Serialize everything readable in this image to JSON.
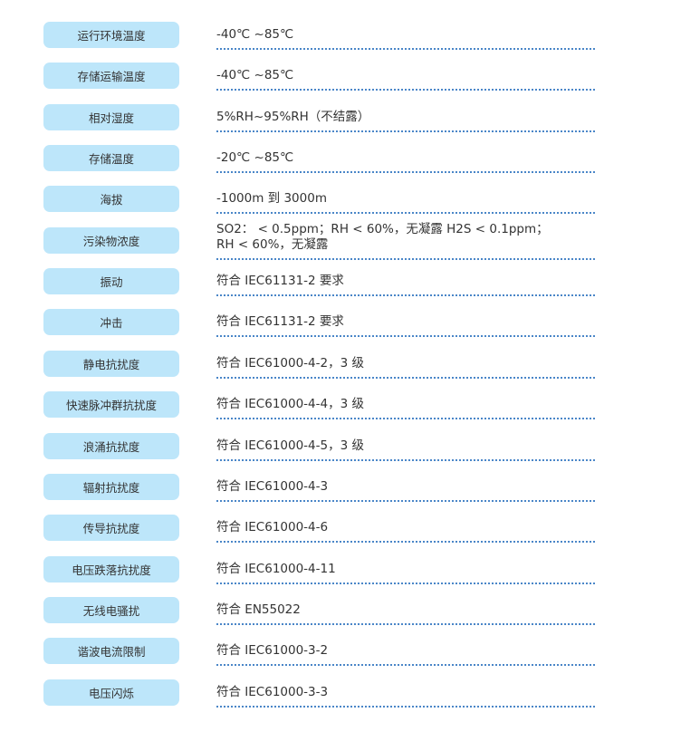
{
  "colors": {
    "pill": "#bde6fa",
    "dots": "#4a86c8",
    "text": "#333333"
  },
  "specs": [
    {
      "label": "运行环境温度",
      "value": "-40℃ ~85℃"
    },
    {
      "label": "存储运输温度",
      "value": "-40℃ ~85℃"
    },
    {
      "label": "相对湿度",
      "value": "5%RH~95%RH（不结露）"
    },
    {
      "label": "存储温度",
      "value": "-20℃ ~85℃"
    },
    {
      "label": "海拔",
      "value": "-1000m 到 3000m"
    },
    {
      "label": "污染物浓度",
      "value": "SO2： < 0.5ppm；RH < 60%，无凝露 H2S < 0.1ppm；",
      "value2": "RH < 60%，无凝露"
    },
    {
      "label": "振动",
      "value": "符合 IEC61131-2 要求"
    },
    {
      "label": "冲击",
      "value": "符合 IEC61131-2 要求"
    },
    {
      "label": "静电抗扰度",
      "value": "符合 IEC61000-4-2，3 级"
    },
    {
      "label": "快速脉冲群抗扰度",
      "value": "符合 IEC61000-4-4，3 级"
    },
    {
      "label": "浪涌抗扰度",
      "value": "符合 IEC61000-4-5，3 级"
    },
    {
      "label": "辐射抗扰度",
      "value": "符合 IEC61000-4-3"
    },
    {
      "label": "传导抗扰度",
      "value": "符合 IEC61000-4-6"
    },
    {
      "label": "电压跌落抗扰度",
      "value": "符合 IEC61000-4-11"
    },
    {
      "label": "无线电骚扰",
      "value": "符合 EN55022"
    },
    {
      "label": "谐波电流限制",
      "value": "符合 IEC61000-3-2"
    },
    {
      "label": "电压闪烁",
      "value": "符合 IEC61000-3-3"
    }
  ]
}
